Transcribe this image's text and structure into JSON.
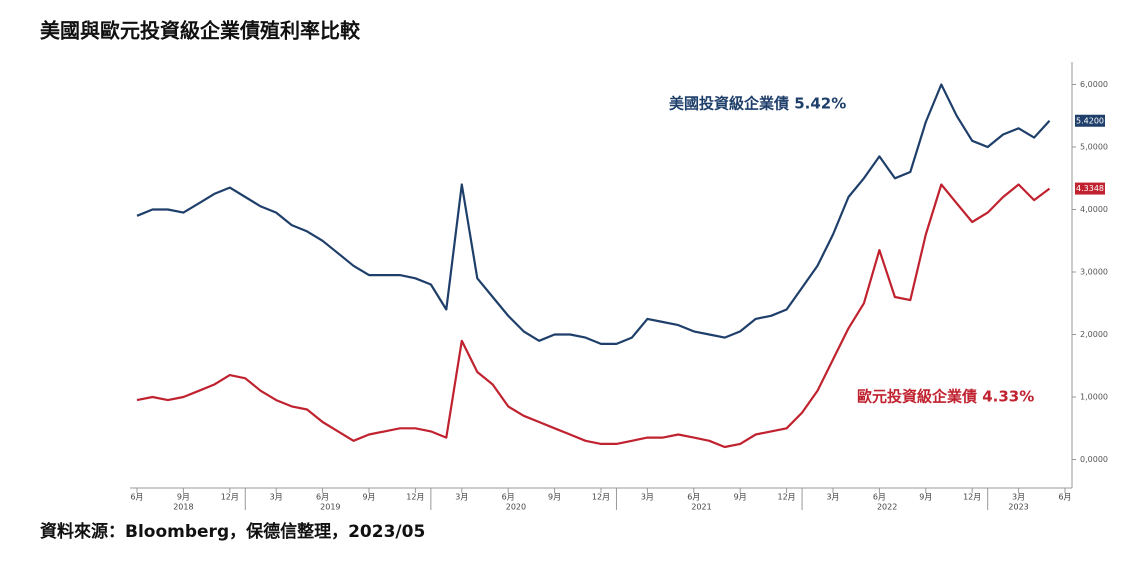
{
  "chart_data": {
    "type": "line",
    "title": "美國與歐元投資級企業債殖利率比較",
    "source": "資料來源：Bloomberg，保德信整理，2023/05",
    "x": [
      "2018-06",
      "2018-07",
      "2018-08",
      "2018-09",
      "2018-10",
      "2018-11",
      "2018-12",
      "2019-01",
      "2019-02",
      "2019-03",
      "2019-04",
      "2019-05",
      "2019-06",
      "2019-07",
      "2019-08",
      "2019-09",
      "2019-10",
      "2019-11",
      "2019-12",
      "2020-01",
      "2020-02",
      "2020-03",
      "2020-04",
      "2020-05",
      "2020-06",
      "2020-07",
      "2020-08",
      "2020-09",
      "2020-10",
      "2020-11",
      "2020-12",
      "2021-01",
      "2021-02",
      "2021-03",
      "2021-04",
      "2021-05",
      "2021-06",
      "2021-07",
      "2021-08",
      "2021-09",
      "2021-10",
      "2021-11",
      "2021-12",
      "2022-01",
      "2022-02",
      "2022-03",
      "2022-04",
      "2022-05",
      "2022-06",
      "2022-07",
      "2022-08",
      "2022-09",
      "2022-10",
      "2022-11",
      "2022-12",
      "2023-01",
      "2023-02",
      "2023-03",
      "2023-04",
      "2023-05"
    ],
    "series": [
      {
        "name": "美國投資級企業債 5.42%",
        "color": "#1f3f6b",
        "end_label": "5.4200",
        "values": [
          3.9,
          4.0,
          4.0,
          3.95,
          4.1,
          4.25,
          4.35,
          4.2,
          4.05,
          3.95,
          3.75,
          3.65,
          3.5,
          3.3,
          3.1,
          2.95,
          2.95,
          2.95,
          2.9,
          2.8,
          2.4,
          4.4,
          2.9,
          2.6,
          2.3,
          2.05,
          1.9,
          2.0,
          2.0,
          1.95,
          1.85,
          1.85,
          1.95,
          2.25,
          2.2,
          2.15,
          2.05,
          2.0,
          1.95,
          2.05,
          2.25,
          2.3,
          2.4,
          2.75,
          3.1,
          3.6,
          4.2,
          4.5,
          4.85,
          4.5,
          4.6,
          5.4,
          6.0,
          5.5,
          5.1,
          5.0,
          5.2,
          5.3,
          5.15,
          5.42
        ]
      },
      {
        "name": "歐元投資級企業債 4.33%",
        "color": "#c0222f",
        "end_label": "4.3348",
        "values": [
          0.95,
          1.0,
          0.95,
          1.0,
          1.1,
          1.2,
          1.35,
          1.3,
          1.1,
          0.95,
          0.85,
          0.8,
          0.6,
          0.45,
          0.3,
          0.4,
          0.45,
          0.5,
          0.5,
          0.45,
          0.35,
          1.9,
          1.4,
          1.2,
          0.85,
          0.7,
          0.6,
          0.5,
          0.4,
          0.3,
          0.25,
          0.25,
          0.3,
          0.35,
          0.35,
          0.4,
          0.35,
          0.3,
          0.2,
          0.25,
          0.4,
          0.45,
          0.5,
          0.75,
          1.1,
          1.6,
          2.1,
          2.5,
          3.35,
          2.6,
          2.55,
          3.6,
          4.4,
          4.1,
          3.8,
          3.95,
          4.2,
          4.4,
          4.15,
          4.3348
        ]
      }
    ],
    "xlim": [
      "2018-06",
      "2023-06"
    ],
    "xticks": [
      {
        "value": "2018-06",
        "label": "6月"
      },
      {
        "value": "2018-09",
        "label": "9月"
      },
      {
        "value": "2018-12",
        "label": "12月"
      },
      {
        "value": "2019-03",
        "label": "3月"
      },
      {
        "value": "2019-06",
        "label": "6月"
      },
      {
        "value": "2019-09",
        "label": "9月"
      },
      {
        "value": "2019-12",
        "label": "12月"
      },
      {
        "value": "2020-03",
        "label": "3月"
      },
      {
        "value": "2020-06",
        "label": "6月"
      },
      {
        "value": "2020-09",
        "label": "9月"
      },
      {
        "value": "2020-12",
        "label": "12月"
      },
      {
        "value": "2021-03",
        "label": "3月"
      },
      {
        "value": "2021-06",
        "label": "6月"
      },
      {
        "value": "2021-09",
        "label": "9月"
      },
      {
        "value": "2021-12",
        "label": "12月"
      },
      {
        "value": "2022-03",
        "label": "3月"
      },
      {
        "value": "2022-06",
        "label": "6月"
      },
      {
        "value": "2022-09",
        "label": "9月"
      },
      {
        "value": "2022-12",
        "label": "12月"
      },
      {
        "value": "2023-03",
        "label": "3月"
      },
      {
        "value": "2023-06",
        "label": "6月"
      }
    ],
    "years": [
      "2018",
      "2019",
      "2020",
      "2021",
      "2022",
      "2023"
    ],
    "ylim": [
      -0.2,
      6.2
    ],
    "yticks": [
      {
        "value": 0,
        "label": "0,0000"
      },
      {
        "value": 1,
        "label": "1,0000"
      },
      {
        "value": 2,
        "label": "2,0000"
      },
      {
        "value": 3,
        "label": "3,0000"
      },
      {
        "value": 4,
        "label": "4,0000"
      },
      {
        "value": 5,
        "label": "5,0000"
      },
      {
        "value": 6,
        "label": "6,0000"
      }
    ],
    "y_axis_side": "right"
  }
}
